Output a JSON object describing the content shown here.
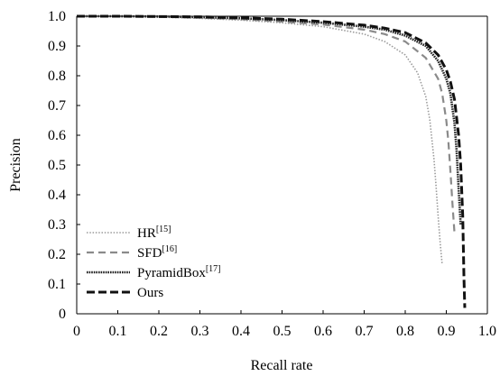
{
  "chart_data": {
    "type": "line",
    "xlabel": "Recall rate",
    "ylabel": "Precision",
    "xlim": [
      0,
      1.0
    ],
    "ylim": [
      0,
      1.0
    ],
    "x_ticks": [
      "0",
      "0.1",
      "0.2",
      "0.3",
      "0.4",
      "0.5",
      "0.6",
      "0.7",
      "0.8",
      "0.9",
      "1.0"
    ],
    "y_ticks": [
      "0",
      "0.1",
      "0.2",
      "0.3",
      "0.4",
      "0.5",
      "0.6",
      "0.7",
      "0.8",
      "0.9",
      "1.0"
    ],
    "grid": false,
    "legend_position": "bottom-left",
    "series": [
      {
        "name": "HR",
        "ref": "[15]",
        "style": "dotted",
        "color": "#9a9a9a",
        "x": [
          0,
          0.1,
          0.2,
          0.3,
          0.4,
          0.5,
          0.6,
          0.7,
          0.75,
          0.8,
          0.83,
          0.85,
          0.86,
          0.87,
          0.875,
          0.88,
          0.885,
          0.89
        ],
        "y": [
          1.0,
          1.0,
          0.997,
          0.993,
          0.987,
          0.978,
          0.965,
          0.94,
          0.915,
          0.87,
          0.81,
          0.73,
          0.65,
          0.52,
          0.43,
          0.33,
          0.24,
          0.165
        ]
      },
      {
        "name": "SFD",
        "ref": "[16]",
        "style": "dashed",
        "color": "#8a8a8a",
        "x": [
          0,
          0.1,
          0.2,
          0.3,
          0.4,
          0.5,
          0.6,
          0.7,
          0.75,
          0.8,
          0.85,
          0.88,
          0.89,
          0.9,
          0.905,
          0.91,
          0.915,
          0.92
        ],
        "y": [
          1.0,
          1.0,
          0.998,
          0.995,
          0.99,
          0.982,
          0.972,
          0.955,
          0.94,
          0.915,
          0.86,
          0.79,
          0.74,
          0.65,
          0.58,
          0.48,
          0.37,
          0.27
        ]
      },
      {
        "name": "PyramidBox",
        "ref": "[17]",
        "style": "dense-dotted",
        "color": "#222222",
        "x": [
          0,
          0.1,
          0.2,
          0.3,
          0.4,
          0.5,
          0.6,
          0.7,
          0.75,
          0.8,
          0.85,
          0.88,
          0.9,
          0.91,
          0.92,
          0.925,
          0.93,
          0.935
        ],
        "y": [
          1.0,
          1.0,
          0.999,
          0.997,
          0.993,
          0.987,
          0.978,
          0.965,
          0.955,
          0.935,
          0.9,
          0.85,
          0.79,
          0.74,
          0.64,
          0.55,
          0.42,
          0.3
        ]
      },
      {
        "name": "Ours",
        "ref": "",
        "style": "bold-dashed",
        "color": "#111111",
        "x": [
          0,
          0.1,
          0.2,
          0.3,
          0.4,
          0.5,
          0.6,
          0.7,
          0.75,
          0.8,
          0.85,
          0.88,
          0.9,
          0.91,
          0.92,
          0.93,
          0.935,
          0.94,
          0.943,
          0.945
        ],
        "y": [
          1.0,
          1.0,
          0.999,
          0.998,
          0.995,
          0.99,
          0.982,
          0.97,
          0.96,
          0.945,
          0.91,
          0.87,
          0.82,
          0.78,
          0.72,
          0.6,
          0.5,
          0.33,
          0.12,
          0.02
        ]
      }
    ]
  }
}
